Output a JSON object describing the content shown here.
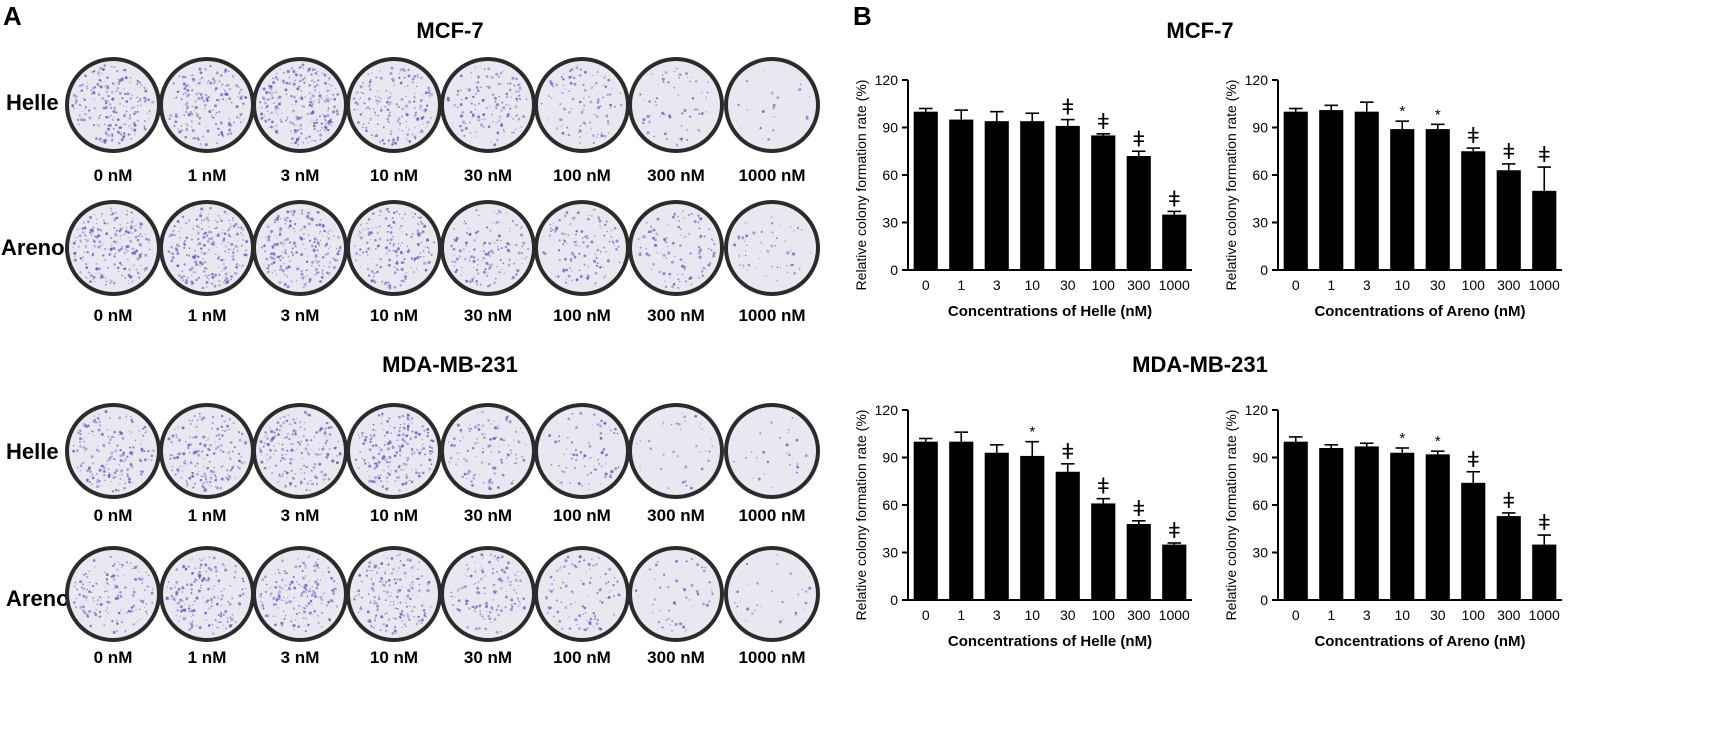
{
  "panel_a": {
    "letter": "A",
    "sections": [
      {
        "title": "MCF-7",
        "rows": [
          {
            "label": "Helle",
            "density": [
              0.85,
              0.75,
              0.95,
              0.7,
              0.55,
              0.4,
              0.25,
              0.08
            ],
            "concentrations": [
              "0 nM",
              "1 nM",
              "3 nM",
              "10 nM",
              "30 nM",
              "100 nM",
              "300 nM",
              "1000 nM"
            ]
          },
          {
            "label": "Areno",
            "density": [
              0.9,
              0.95,
              0.9,
              0.7,
              0.55,
              0.5,
              0.45,
              0.2
            ],
            "concentrations": [
              "0 nM",
              "1 nM",
              "3 nM",
              "10 nM",
              "30 nM",
              "100 nM",
              "300 nM",
              "1000 nM"
            ]
          }
        ]
      },
      {
        "title": "MDA-MB-231",
        "rows": [
          {
            "label": "Helle",
            "density": [
              0.7,
              0.75,
              0.75,
              0.8,
              0.45,
              0.3,
              0.15,
              0.1
            ],
            "concentrations": [
              "0 nM",
              "1 nM",
              "3 nM",
              "10 nM",
              "30 nM",
              "100 nM",
              "300 nM",
              "1000 nM"
            ]
          },
          {
            "label": "Areno",
            "density": [
              0.6,
              0.7,
              0.7,
              0.75,
              0.55,
              0.4,
              0.2,
              0.12
            ],
            "concentrations": [
              "0 nM",
              "1 nM",
              "3 nM",
              "10 nM",
              "30 nM",
              "100 nM",
              "300 nM",
              "1000 nM"
            ]
          }
        ]
      }
    ],
    "colors": {
      "colony": "#6a4fc0",
      "plate": "#e9e7ef",
      "rim": "#2b2b2b"
    }
  },
  "panel_b": {
    "letter": "B",
    "section_titles": [
      "MCF-7",
      "MDA-MB-231"
    ]
  },
  "chart_data": [
    {
      "type": "bar",
      "section": "MCF-7",
      "categories": [
        "0",
        "1",
        "3",
        "10",
        "30",
        "100",
        "300",
        "1000"
      ],
      "values": [
        100,
        95,
        94,
        94,
        91,
        85,
        72,
        35
      ],
      "errors": [
        2,
        6,
        6,
        5,
        4,
        1,
        3,
        2
      ],
      "marks": [
        "",
        "",
        "",
        "",
        "ǂ",
        "ǂ",
        "ǂ",
        "ǂ"
      ],
      "xlabel": "Concentrations of Helle (nM)",
      "ylabel": "Relative colony formation rate (%)",
      "ylim": [
        0,
        120
      ],
      "yticks": [
        0,
        30,
        60,
        90,
        120
      ]
    },
    {
      "type": "bar",
      "section": "MCF-7",
      "categories": [
        "0",
        "1",
        "3",
        "10",
        "30",
        "100",
        "300",
        "1000"
      ],
      "values": [
        100,
        101,
        100,
        89,
        89,
        75,
        63,
        50
      ],
      "errors": [
        2,
        3,
        6,
        5,
        3,
        2,
        4,
        15
      ],
      "marks": [
        "",
        "",
        "",
        "*",
        "*",
        "ǂ",
        "ǂ",
        "ǂ"
      ],
      "xlabel": "Concentrations of Areno (nM)",
      "ylabel": "Relative colony formation rate (%)",
      "ylim": [
        0,
        120
      ],
      "yticks": [
        0,
        30,
        60,
        90,
        120
      ]
    },
    {
      "type": "bar",
      "section": "MDA-MB-231",
      "categories": [
        "0",
        "1",
        "3",
        "10",
        "30",
        "100",
        "300",
        "1000"
      ],
      "values": [
        100,
        100,
        93,
        91,
        81,
        61,
        48,
        35
      ],
      "errors": [
        2,
        6,
        5,
        9,
        5,
        3,
        2,
        1
      ],
      "marks": [
        "",
        "",
        "",
        "*",
        "ǂ",
        "ǂ",
        "ǂ",
        "ǂ"
      ],
      "xlabel": "Concentrations of Helle (nM)",
      "ylabel": "Relative colony formation rate (%)",
      "ylim": [
        0,
        120
      ],
      "yticks": [
        0,
        30,
        60,
        90,
        120
      ]
    },
    {
      "type": "bar",
      "section": "MDA-MB-231",
      "categories": [
        "0",
        "1",
        "3",
        "10",
        "30",
        "100",
        "300",
        "1000"
      ],
      "values": [
        100,
        96,
        97,
        93,
        92,
        74,
        53,
        35
      ],
      "errors": [
        3,
        2,
        2,
        3,
        2,
        7,
        2,
        6
      ],
      "marks": [
        "",
        "",
        "",
        "*",
        "*",
        "ǂ",
        "ǂ",
        "ǂ"
      ],
      "xlabel": "Concentrations of Areno (nM)",
      "ylabel": "Relative colony formation rate (%)",
      "ylim": [
        0,
        120
      ],
      "yticks": [
        0,
        30,
        60,
        90,
        120
      ]
    }
  ]
}
